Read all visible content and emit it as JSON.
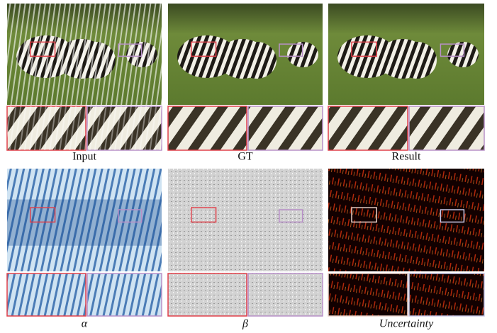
{
  "panels": [
    {
      "caption": "Input"
    },
    {
      "caption": "GT"
    },
    {
      "caption": "Result"
    },
    {
      "caption": "α"
    },
    {
      "caption": "β"
    },
    {
      "caption": "Uncertainty"
    }
  ]
}
